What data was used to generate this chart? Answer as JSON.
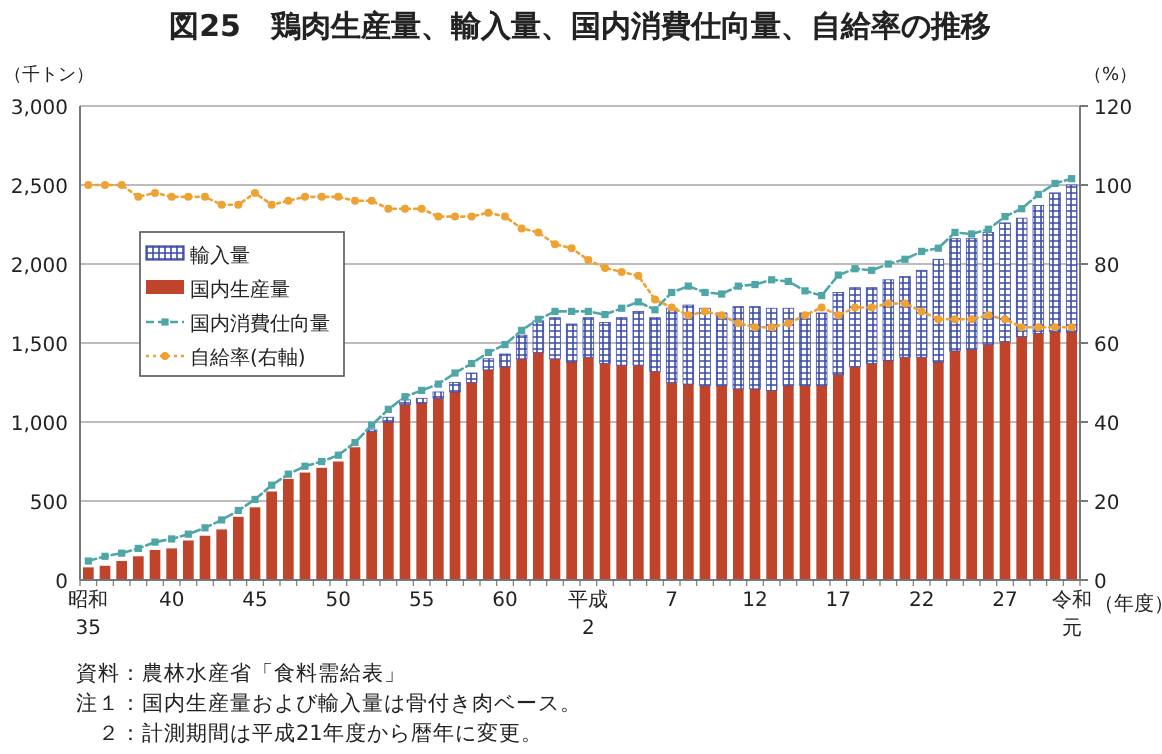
{
  "chart_data": {
    "type": "bar",
    "stacked": true,
    "title": "図25　鶏肉生産量、輸入量、国内消費仕向量、自給率の推移",
    "ylabel": "（千トン）",
    "y2label": "（%）",
    "xlabel": "（年度）",
    "categories": [
      "昭和35",
      null,
      null,
      null,
      null,
      "40",
      null,
      null,
      null,
      null,
      "45",
      null,
      null,
      null,
      null,
      "50",
      null,
      null,
      null,
      null,
      "55",
      null,
      null,
      null,
      null,
      "60",
      null,
      null,
      null,
      null,
      "平成2",
      null,
      null,
      null,
      null,
      "7",
      null,
      null,
      null,
      null,
      "12",
      null,
      null,
      null,
      null,
      "17",
      null,
      null,
      null,
      null,
      "22",
      null,
      null,
      null,
      null,
      "27",
      null,
      null,
      null,
      "令和元"
    ],
    "series": [
      {
        "name": "国内生産量",
        "type": "bar",
        "color": "#c0432b",
        "values": [
          80,
          90,
          120,
          150,
          190,
          200,
          250,
          280,
          320,
          400,
          460,
          560,
          640,
          680,
          710,
          750,
          840,
          940,
          1000,
          1110,
          1120,
          1150,
          1190,
          1250,
          1330,
          1350,
          1400,
          1440,
          1400,
          1380,
          1410,
          1370,
          1360,
          1360,
          1320,
          1250,
          1240,
          1230,
          1230,
          1210,
          1210,
          1200,
          1230,
          1230,
          1230,
          1300,
          1350,
          1370,
          1390,
          1410,
          1410,
          1380,
          1450,
          1460,
          1490,
          1510,
          1540,
          1560,
          1570,
          1570
        ]
      },
      {
        "name": "輸入量",
        "type": "bar",
        "color": "#3a4aa8",
        "values": [
          0,
          0,
          0,
          0,
          0,
          0,
          0,
          0,
          0,
          0,
          0,
          0,
          0,
          0,
          0,
          0,
          0,
          10,
          30,
          30,
          30,
          40,
          60,
          60,
          70,
          80,
          150,
          200,
          260,
          240,
          250,
          260,
          300,
          340,
          340,
          470,
          500,
          490,
          460,
          520,
          520,
          520,
          490,
          460,
          460,
          520,
          500,
          480,
          510,
          510,
          550,
          650,
          710,
          700,
          710,
          750,
          750,
          810,
          880,
          930
        ]
      },
      {
        "name": "国内消費仕向量",
        "type": "line",
        "color": "#4ea6a6",
        "marker": "square",
        "line_style": "dashed",
        "values": [
          120,
          150,
          170,
          200,
          240,
          260,
          290,
          330,
          380,
          440,
          510,
          600,
          670,
          720,
          750,
          790,
          870,
          980,
          1080,
          1160,
          1200,
          1240,
          1310,
          1370,
          1440,
          1490,
          1580,
          1650,
          1700,
          1700,
          1700,
          1680,
          1720,
          1760,
          1710,
          1820,
          1860,
          1820,
          1810,
          1860,
          1870,
          1900,
          1890,
          1830,
          1800,
          1930,
          1970,
          1960,
          2000,
          2030,
          2080,
          2100,
          2200,
          2190,
          2220,
          2300,
          2350,
          2440,
          2510,
          2540
        ]
      },
      {
        "name": "自給率(右軸)",
        "type": "line",
        "axis": "y2",
        "color": "#eea232",
        "marker": "circle",
        "line_style": "dotted",
        "values": [
          100,
          100,
          100,
          97,
          98,
          97,
          97,
          97,
          95,
          95,
          98,
          95,
          96,
          97,
          97,
          97,
          96,
          96,
          94,
          94,
          94,
          92,
          92,
          92,
          93,
          92,
          89,
          88,
          85,
          84,
          81,
          79,
          78,
          77,
          71,
          69,
          67,
          68,
          67,
          65,
          64,
          64,
          65,
          67,
          69,
          67,
          69,
          69,
          70,
          70,
          68,
          66,
          66,
          66,
          67,
          66,
          64,
          64,
          64,
          64
        ]
      }
    ],
    "ylim": [
      0,
      3000
    ],
    "yticks": [
      {
        "value": 0,
        "label": "0"
      },
      {
        "value": 500,
        "label": "500"
      },
      {
        "value": 1000,
        "label": "1,000"
      },
      {
        "value": 1500,
        "label": "1,500"
      },
      {
        "value": 2000,
        "label": "2,000"
      },
      {
        "value": 2500,
        "label": "2,500"
      },
      {
        "value": 3000,
        "label": "3,000"
      }
    ],
    "y2lim": [
      0,
      120
    ],
    "y2ticks": [
      0,
      20,
      40,
      60,
      80,
      100,
      120
    ],
    "grid": "y",
    "legend": "left",
    "annotations": [
      "資料：農林水産省「食料需給表」",
      "注１：国内生産量および輸入量は骨付き肉ベース。",
      "　２：計測期間は平成21年度から暦年に変更。"
    ]
  }
}
